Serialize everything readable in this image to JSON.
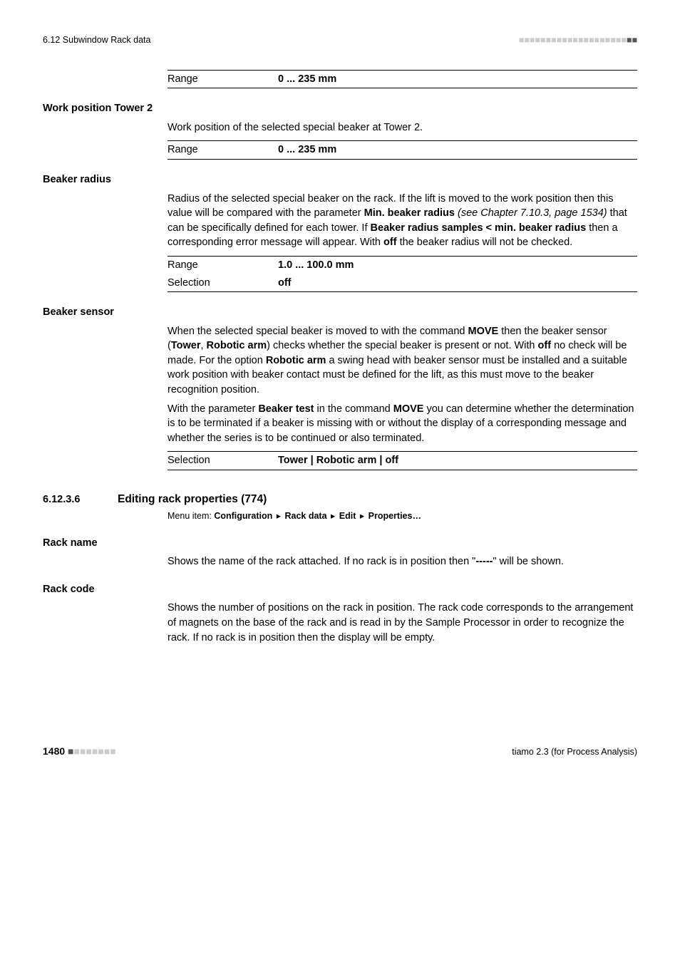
{
  "header": {
    "left": "6.12  Subwindow Rack data",
    "bars_total": 22,
    "bars_dark": 2
  },
  "block_top": {
    "range_label": "Range",
    "range_value": "0 ... 235 mm"
  },
  "work_position_tower2": {
    "heading": "Work position Tower 2",
    "desc": "Work position of the selected special beaker at Tower 2.",
    "range_label": "Range",
    "range_value": "0 ... 235 mm"
  },
  "beaker_radius": {
    "heading": "Beaker radius",
    "desc_parts": {
      "p1": "Radius of the selected special beaker on the rack. If the lift is moved to the work position then this value will be compared with the parameter ",
      "b1": "Min. beaker radius",
      "i1": " (see Chapter 7.10.3, page 1534)",
      "p2": " that can be specifically defined for each tower. If ",
      "b2": "Beaker radius samples < min. beaker radius",
      "p3": " then a corresponding error message will appear. With ",
      "b3": "off",
      "p4": " the beaker radius will not be checked."
    },
    "range_label": "Range",
    "range_value": "1.0 ... 100.0 mm",
    "selection_label": "Selection",
    "selection_value": "off"
  },
  "beaker_sensor": {
    "heading": "Beaker sensor",
    "para1": {
      "p1": "When the selected special beaker is moved to with the command ",
      "b1": "MOVE",
      "p2": " then the beaker sensor (",
      "b2": "Tower",
      "sep1": ", ",
      "b3": "Robotic arm",
      "p3": ") checks whether the special beaker is present or not. With ",
      "b4": "off",
      "p4": " no check will be made. For the option ",
      "b5": "Robotic arm",
      "p5": " a swing head with beaker sensor must be installed and a suitable work position with beaker contact must be defined for the lift, as this must move to the beaker recognition position."
    },
    "para2": {
      "p1": "With the parameter ",
      "b1": "Beaker test",
      "p2": " in the command ",
      "b2": "MOVE",
      "p3": " you can determine whether the determination is to be terminated if a beaker is missing with or without the display of a corresponding message and whether the series is to be continued or also terminated."
    },
    "selection_label": "Selection",
    "selection_value": "Tower | Robotic arm | off"
  },
  "subsection": {
    "number": "6.12.3.6",
    "title": "Editing rack properties (774)",
    "menu_label": "Menu item: ",
    "menu_path": [
      "Configuration",
      "Rack data",
      "Edit",
      "Properties…"
    ]
  },
  "rack_name": {
    "heading": "Rack name",
    "desc_parts": {
      "p1": "Shows the name of the rack attached. If no rack is in position then \"",
      "b1": "-----",
      "p2": "\" will be shown."
    }
  },
  "rack_code": {
    "heading": "Rack code",
    "desc": "Shows the number of positions on the rack in position. The rack code corresponds to the arrangement of magnets on the base of the rack and is read in by the Sample Processor in order to recognize the rack. If no rack is in position then the display will be empty."
  },
  "footer": {
    "page": "1480",
    "bars_total": 8,
    "bars_dark": 1,
    "right": "tiamo 2.3 (for Process Analysis)"
  }
}
